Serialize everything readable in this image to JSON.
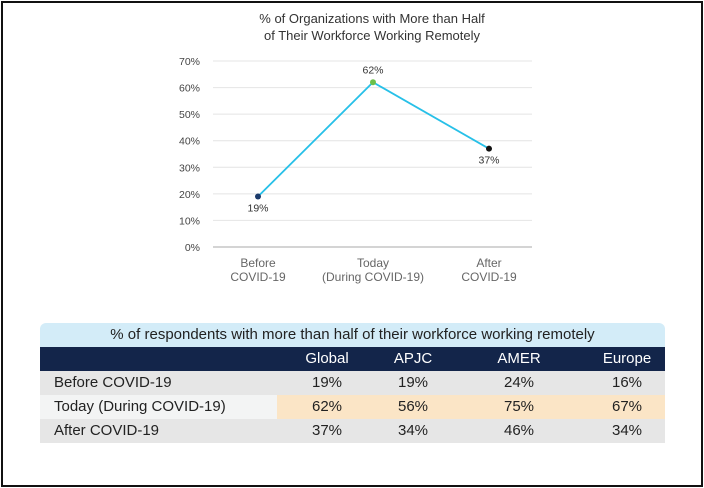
{
  "chart_data": {
    "type": "line",
    "title": [
      "% of Organizations with More than Half",
      "of Their Workforce Working Remotely"
    ],
    "categories": [
      [
        "Before",
        "COVID-19"
      ],
      [
        "Today",
        "(During COVID-19)"
      ],
      [
        "After",
        "COVID-19"
      ]
    ],
    "values": [
      19,
      62,
      37
    ],
    "data_labels": [
      "19%",
      "62%",
      "37%"
    ],
    "point_colors": [
      "#1b3a6b",
      "#6cc04a",
      "#111111"
    ],
    "line_color": "#27c0e8",
    "ylim": [
      0,
      70
    ],
    "yticks": [
      "0%",
      "10%",
      "20%",
      "30%",
      "40%",
      "50%",
      "60%",
      "70%"
    ],
    "grid": true
  },
  "table": {
    "title": "% of respondents with more than half of their workforce working remotely",
    "columns": [
      "",
      "Global",
      "APJC",
      "AMER",
      "Europe"
    ],
    "rows": [
      [
        "Before COVID-19",
        "19%",
        "19%",
        "24%",
        "16%"
      ],
      [
        "Today (During COVID-19)",
        "62%",
        "56%",
        "75%",
        "67%"
      ],
      [
        "After COVID-19",
        "37%",
        "34%",
        "46%",
        "34%"
      ]
    ]
  }
}
